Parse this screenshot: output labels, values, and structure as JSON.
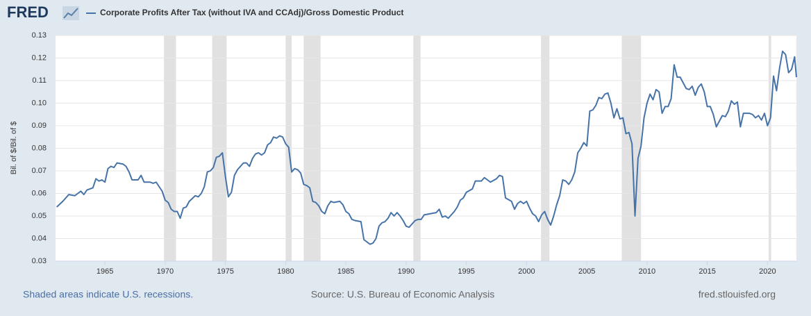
{
  "chart_data": {
    "type": "line",
    "logo": "FRED",
    "ylabel": "Bil. of $/Bil. of $",
    "note": "Shaded areas indicate U.S. recessions.",
    "source": "Source: U.S. Bureau of Economic Analysis",
    "site": "fred.stlouisfed.org",
    "xlim": [
      1960.9,
      2022.4
    ],
    "ylim": [
      0.03,
      0.13
    ],
    "xticks": [
      1965,
      1970,
      1975,
      1980,
      1985,
      1990,
      1995,
      2000,
      2005,
      2010,
      2015,
      2020
    ],
    "yticks": [
      0.03,
      0.04,
      0.05,
      0.06,
      0.07,
      0.08,
      0.09,
      {
        "value": 0.1,
        "label": "0.10"
      },
      0.11,
      0.12,
      0.13
    ],
    "grid": true,
    "recession_color": "#e1e1e1",
    "recessions": [
      [
        1969.9,
        1970.9
      ],
      [
        1973.9,
        1975.1
      ],
      [
        1980.0,
        1980.5
      ],
      [
        1981.5,
        1982.9
      ],
      [
        1990.6,
        1991.2
      ],
      [
        2001.2,
        2001.9
      ],
      [
        2007.9,
        2009.5
      ],
      [
        2020.1,
        2020.3
      ]
    ],
    "x": [
      1961.0,
      1961.5,
      1962.0,
      1962.5,
      1963.0,
      1963.25,
      1963.5,
      1964.0,
      1964.25,
      1964.5,
      1964.75,
      1965.0,
      1965.25,
      1965.5,
      1965.75,
      1966.0,
      1966.5,
      1966.75,
      1967.0,
      1967.25,
      1967.75,
      1968.0,
      1968.25,
      1968.75,
      1969.0,
      1969.25,
      1969.75,
      1970.0,
      1970.25,
      1970.5,
      1970.75,
      1971.0,
      1971.25,
      1971.5,
      1971.75,
      1972.0,
      1972.5,
      1972.75,
      1973.0,
      1973.25,
      1973.5,
      1973.75,
      1974.0,
      1974.25,
      1974.5,
      1974.75,
      1975.0,
      1975.25,
      1975.5,
      1975.75,
      1976.0,
      1976.5,
      1976.75,
      1977.0,
      1977.25,
      1977.5,
      1977.75,
      1978.0,
      1978.25,
      1978.5,
      1978.75,
      1979.0,
      1979.25,
      1979.5,
      1979.75,
      1980.0,
      1980.25,
      1980.5,
      1980.75,
      1981.0,
      1981.25,
      1981.5,
      1981.75,
      1982.0,
      1982.25,
      1982.5,
      1982.75,
      1983.0,
      1983.25,
      1983.5,
      1983.75,
      1984.0,
      1984.5,
      1984.75,
      1985.0,
      1985.25,
      1985.5,
      1985.75,
      1986.25,
      1986.5,
      1986.75,
      1987.0,
      1987.25,
      1987.5,
      1987.75,
      1988.0,
      1988.25,
      1988.5,
      1988.75,
      1989.0,
      1989.25,
      1989.5,
      1989.75,
      1990.0,
      1990.25,
      1990.5,
      1990.75,
      1991.0,
      1991.25,
      1991.5,
      1992.0,
      1992.5,
      1992.75,
      1993.0,
      1993.25,
      1993.5,
      1993.75,
      1994.0,
      1994.25,
      1994.5,
      1994.75,
      1995.0,
      1995.5,
      1995.75,
      1996.25,
      1996.5,
      1997.0,
      1997.5,
      1997.75,
      1998.0,
      1998.25,
      1998.75,
      1999.0,
      1999.25,
      1999.5,
      1999.75,
      2000.0,
      2000.25,
      2000.5,
      2000.75,
      2001.0,
      2001.25,
      2001.5,
      2001.75,
      2002.0,
      2002.25,
      2002.5,
      2002.75,
      2003.0,
      2003.25,
      2003.5,
      2003.75,
      2004.0,
      2004.25,
      2004.5,
      2004.75,
      2005.0,
      2005.25,
      2005.5,
      2005.75,
      2006.0,
      2006.25,
      2006.5,
      2006.75,
      2007.0,
      2007.25,
      2007.5,
      2007.75,
      2008.0,
      2008.25,
      2008.5,
      2008.75,
      2009.0,
      2009.25,
      2009.5,
      2009.75,
      2010.0,
      2010.25,
      2010.5,
      2010.75,
      2011.0,
      2011.25,
      2011.5,
      2011.75,
      2012.0,
      2012.25,
      2012.5,
      2012.75,
      2013.0,
      2013.25,
      2013.5,
      2013.75,
      2014.0,
      2014.25,
      2014.5,
      2014.75,
      2015.0,
      2015.25,
      2015.5,
      2015.75,
      2016.0,
      2016.25,
      2016.5,
      2016.75,
      2017.0,
      2017.25,
      2017.5,
      2017.75,
      2018.0,
      2018.5,
      2018.75,
      2019.0,
      2019.25,
      2019.5,
      2019.75,
      2020.0,
      2020.25,
      2020.5,
      2020.75,
      2021.0,
      2021.25,
      2021.5,
      2021.75,
      2022.0,
      2022.25,
      2022.4
    ],
    "series": [
      {
        "name": "Corporate Profits After Tax (without IVA and CCAdj)/Gross Domestic Product",
        "color": "#4572a7",
        "values": [
          0.054,
          0.0565,
          0.0595,
          0.059,
          0.061,
          0.0595,
          0.0615,
          0.0625,
          0.0665,
          0.0655,
          0.066,
          0.065,
          0.071,
          0.072,
          0.0715,
          0.0735,
          0.073,
          0.072,
          0.0695,
          0.066,
          0.066,
          0.068,
          0.065,
          0.065,
          0.0645,
          0.065,
          0.061,
          0.057,
          0.056,
          0.053,
          0.052,
          0.052,
          0.049,
          0.0535,
          0.054,
          0.0565,
          0.059,
          0.0585,
          0.06,
          0.063,
          0.0695,
          0.07,
          0.0715,
          0.076,
          0.0765,
          0.078,
          0.0675,
          0.0585,
          0.0605,
          0.068,
          0.0705,
          0.0735,
          0.0735,
          0.072,
          0.0755,
          0.0775,
          0.078,
          0.077,
          0.078,
          0.0815,
          0.0825,
          0.085,
          0.0845,
          0.0855,
          0.085,
          0.082,
          0.0805,
          0.0695,
          0.071,
          0.0705,
          0.069,
          0.064,
          0.0635,
          0.0625,
          0.0565,
          0.056,
          0.0545,
          0.052,
          0.051,
          0.0545,
          0.0565,
          0.056,
          0.0565,
          0.055,
          0.052,
          0.051,
          0.0485,
          0.048,
          0.0475,
          0.0395,
          0.0385,
          0.0375,
          0.038,
          0.04,
          0.0455,
          0.047,
          0.0475,
          0.049,
          0.0515,
          0.05,
          0.0515,
          0.05,
          0.048,
          0.0455,
          0.045,
          0.0465,
          0.048,
          0.0485,
          0.0485,
          0.0505,
          0.051,
          0.0515,
          0.053,
          0.0495,
          0.05,
          0.049,
          0.0505,
          0.052,
          0.054,
          0.057,
          0.058,
          0.0605,
          0.062,
          0.0655,
          0.0655,
          0.067,
          0.065,
          0.0665,
          0.068,
          0.0675,
          0.058,
          0.0565,
          0.053,
          0.0555,
          0.0565,
          0.0555,
          0.0565,
          0.0535,
          0.051,
          0.05,
          0.0475,
          0.0505,
          0.052,
          0.0485,
          0.046,
          0.05,
          0.055,
          0.059,
          0.066,
          0.0655,
          0.064,
          0.066,
          0.0695,
          0.078,
          0.08,
          0.0825,
          0.081,
          0.0965,
          0.097,
          0.099,
          0.1025,
          0.102,
          0.104,
          0.1045,
          0.1,
          0.0935,
          0.0975,
          0.093,
          0.0935,
          0.0865,
          0.087,
          0.082,
          0.05,
          0.0755,
          0.081,
          0.0935,
          0.1,
          0.104,
          0.1015,
          0.106,
          0.105,
          0.0955,
          0.0985,
          0.0985,
          0.102,
          0.117,
          0.1115,
          0.1115,
          0.109,
          0.1065,
          0.106,
          0.1075,
          0.1035,
          0.107,
          0.1085,
          0.105,
          0.0985,
          0.0985,
          0.095,
          0.0895,
          0.092,
          0.0945,
          0.094,
          0.0965,
          0.101,
          0.0995,
          0.1005,
          0.0895,
          0.0955,
          0.0955,
          0.095,
          0.0935,
          0.0945,
          0.0925,
          0.0955,
          0.09,
          0.0935,
          0.112,
          0.1055,
          0.1155,
          0.123,
          0.1215,
          0.1135,
          0.115,
          0.1205,
          0.1115
        ]
      }
    ]
  }
}
